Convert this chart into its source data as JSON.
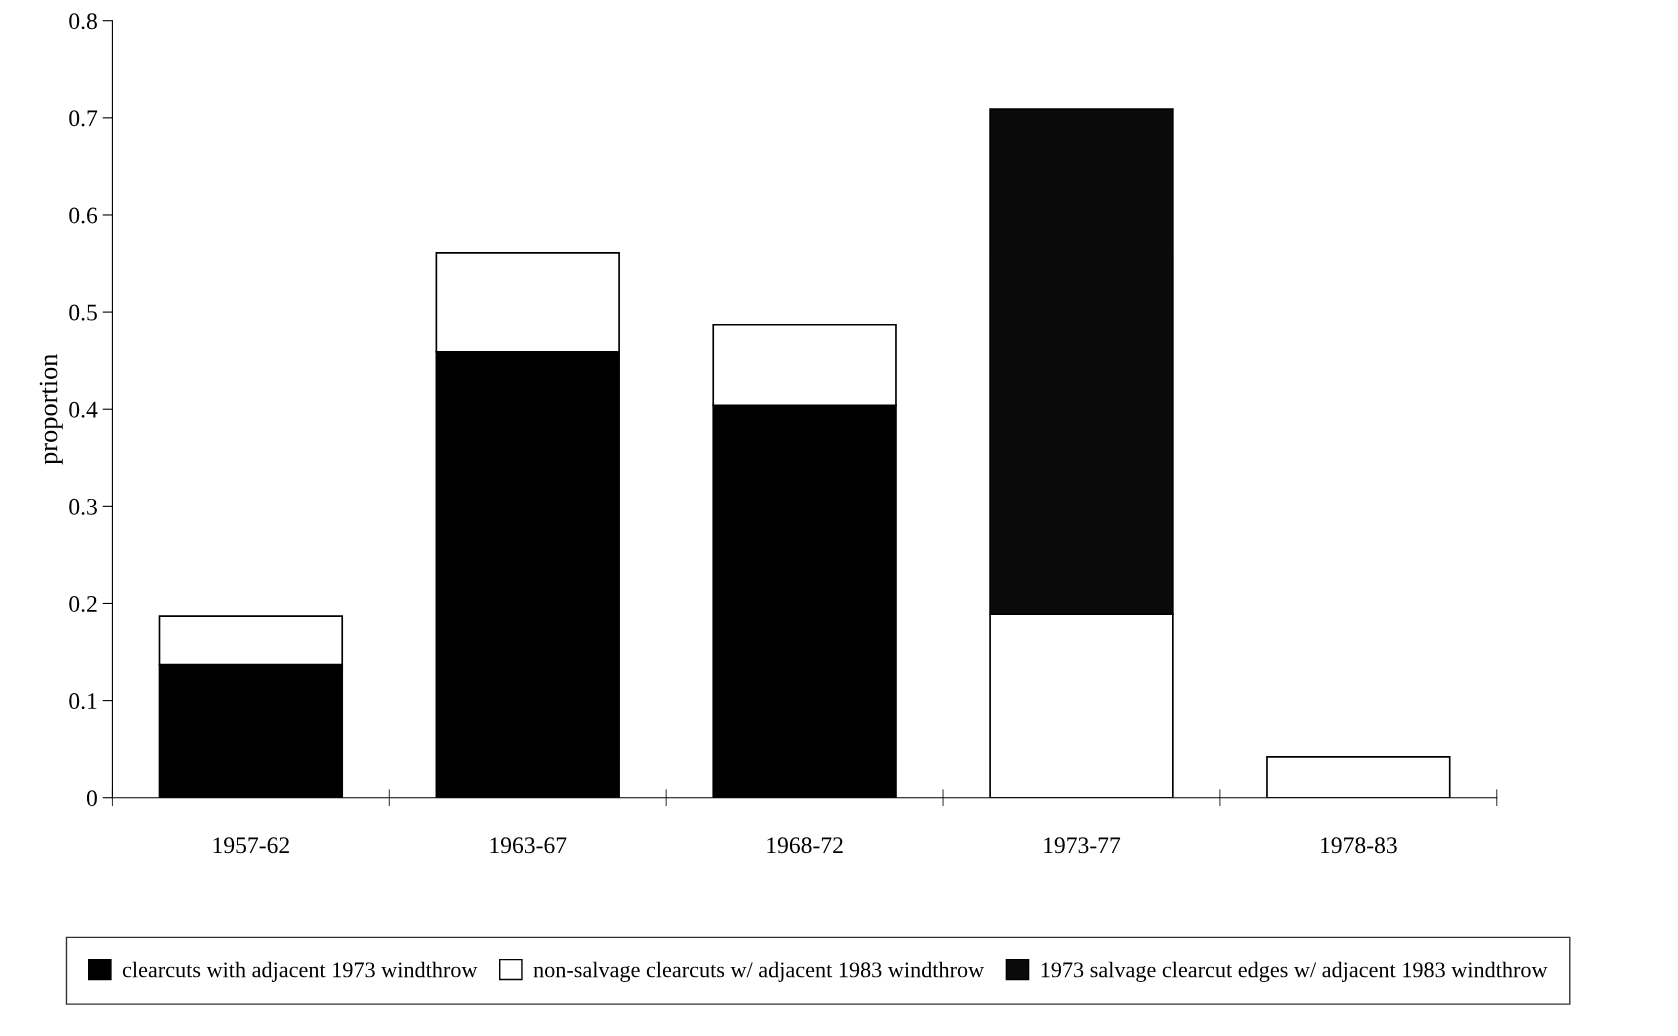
{
  "chart_data": {
    "type": "bar",
    "stacked": true,
    "ylabel": "proportion",
    "categories": [
      "1957-62",
      "1963-67",
      "1968-72",
      "1973-77",
      "1978-83"
    ],
    "series": [
      {
        "name": "clearcuts with adjacent 1973 windthrow",
        "color": "#000000",
        "values": [
          0.137,
          0.459,
          0.404,
          null,
          null
        ]
      },
      {
        "name": "non-salvage clearcuts w/ adjacent 1983 windthrow",
        "color": "#ffffff",
        "values": [
          0.05,
          0.102,
          0.083,
          0.189,
          0.042
        ]
      },
      {
        "name": "1973 salvage clearcut edges w/ adjacent 1983 windthrow",
        "color": "#0a0a0a",
        "values": [
          null,
          null,
          null,
          0.52,
          null
        ]
      }
    ],
    "ylim": [
      0,
      0.8
    ],
    "yticks": [
      0,
      0.1,
      0.2,
      0.3,
      0.4,
      0.5,
      0.6,
      0.7,
      0.8
    ],
    "grid": false,
    "legend": "bottom"
  }
}
